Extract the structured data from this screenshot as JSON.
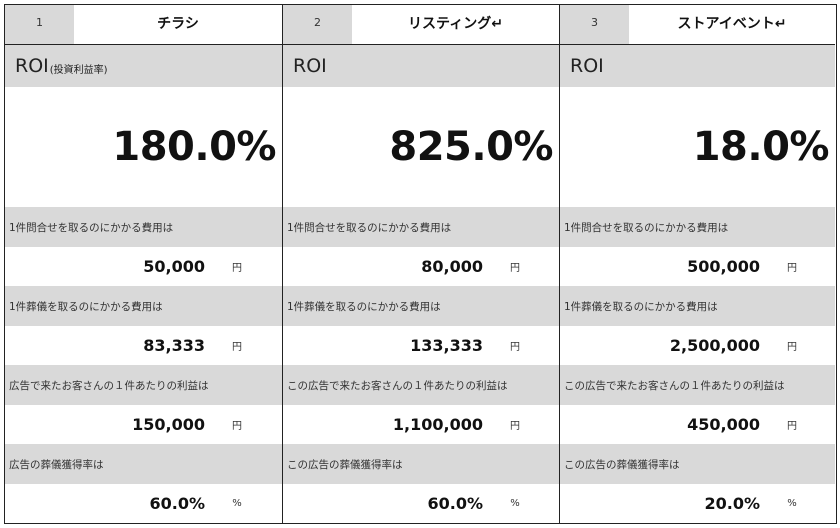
{
  "columns": [
    {
      "number": "1",
      "name": "チラシ",
      "roi_label": "ROI",
      "roi_label_note": "(投資利益率)",
      "roi_value": "180.0%",
      "metrics": [
        {
          "label": "1件問合せを取るのにかかる費用は",
          "value": "50,000",
          "unit": "円"
        },
        {
          "label": "1件葬儀を取るのにかかる費用は",
          "value": "83,333",
          "unit": "円"
        },
        {
          "label": "広告で来たお客さんの１件あたりの利益は",
          "value": "150,000",
          "unit": "円"
        },
        {
          "label": "広告の葬儀獲得率は",
          "value": "60.0%",
          "unit": "%"
        }
      ]
    },
    {
      "number": "2",
      "name": "リスティング↵",
      "roi_label": "ROI",
      "roi_label_note": "",
      "roi_value": "825.0%",
      "metrics": [
        {
          "label": "1件問合せを取るのにかかる費用は",
          "value": "80,000",
          "unit": "円"
        },
        {
          "label": "1件葬儀を取るのにかかる費用は",
          "value": "133,333",
          "unit": "円"
        },
        {
          "label": "この広告で来たお客さんの１件あたりの利益は",
          "value": "1,100,000",
          "unit": "円"
        },
        {
          "label": "この広告の葬儀獲得率は",
          "value": "60.0%",
          "unit": "%"
        }
      ]
    },
    {
      "number": "3",
      "name": "ストアイベント↵",
      "roi_label": "ROI",
      "roi_label_note": "",
      "roi_value": "18.0%",
      "metrics": [
        {
          "label": "1件問合せを取るのにかかる費用は",
          "value": "500,000",
          "unit": "円"
        },
        {
          "label": "1件葬儀を取るのにかかる費用は",
          "value": "2,500,000",
          "unit": "円"
        },
        {
          "label": "この広告で来たお客さんの１件あたりの利益は",
          "value": "450,000",
          "unit": "円"
        },
        {
          "label": "この広告の葬儀獲得率は",
          "value": "20.0%",
          "unit": "%"
        }
      ]
    }
  ]
}
